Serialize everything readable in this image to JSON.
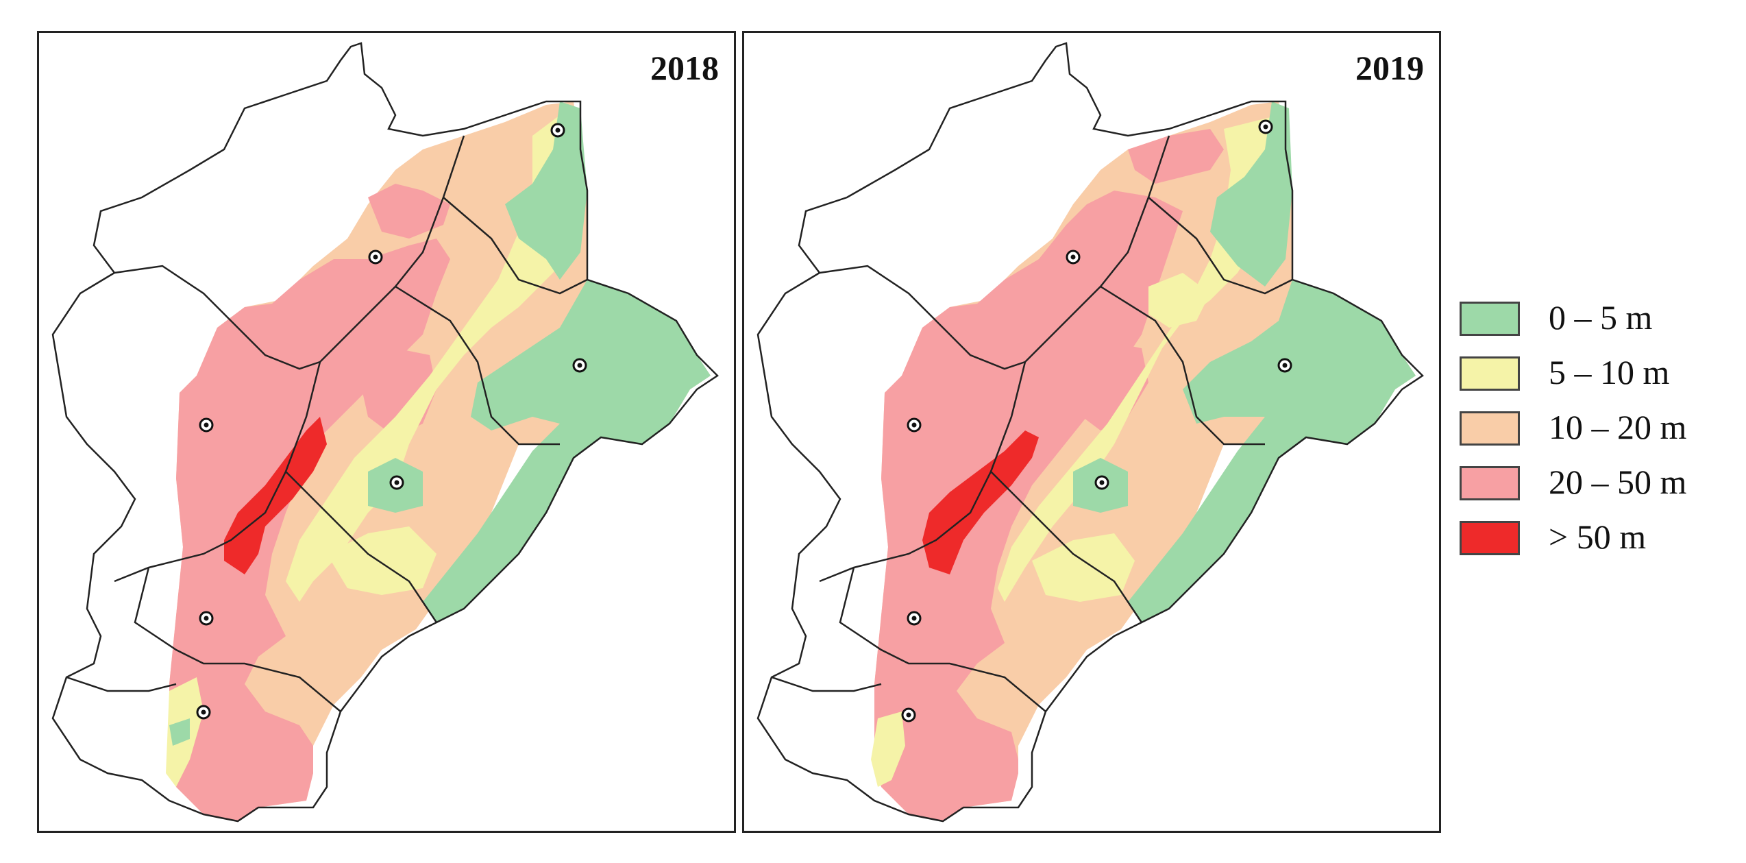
{
  "panels": [
    {
      "year_label": "2018"
    },
    {
      "year_label": "2019"
    }
  ],
  "legend": [
    {
      "label": "0 – 5 m",
      "color": "#9dd9a8"
    },
    {
      "label": "5 – 10 m",
      "color": "#f5f3a8"
    },
    {
      "label": "10 – 20 m",
      "color": "#f9cda8"
    },
    {
      "label": "20 – 50 m",
      "color": "#f7a0a3"
    },
    {
      "label": "> 50 m",
      "color": "#ee2a2a"
    }
  ],
  "map_markers": [
    "station-marker-icon"
  ],
  "colors": {
    "boundary": "#222222",
    "background": "#ffffff"
  }
}
